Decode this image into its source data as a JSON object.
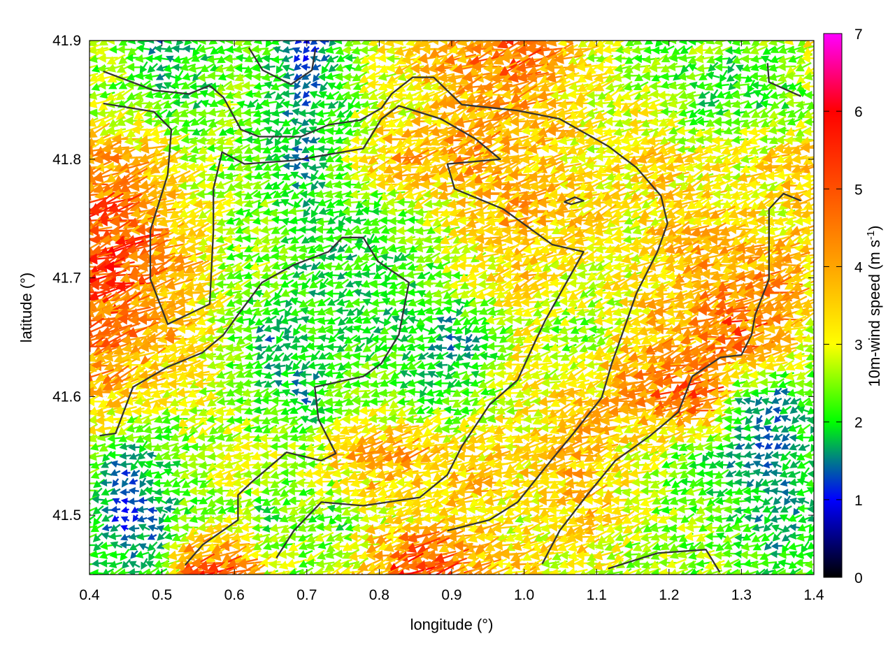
{
  "chart_data": {
    "type": "vector-field",
    "xlabel": "longitude (°)",
    "ylabel": "latitude (°)",
    "xlim": [
      0.4,
      1.4
    ],
    "ylim": [
      41.45,
      41.9
    ],
    "xticks": [
      "0.4",
      "0.5",
      "0.6",
      "0.7",
      "0.8",
      "0.9",
      "1.0",
      "1.1",
      "1.2",
      "1.3",
      "1.4"
    ],
    "yticks": [
      "41.5",
      "41.6",
      "41.7",
      "41.8",
      "41.9"
    ],
    "grid": true,
    "colorbar": {
      "label": "10m-wind speed (m s",
      "label_sup": "-1",
      "label_end": ")",
      "range": [
        0,
        7
      ],
      "ticks": [
        "0",
        "1",
        "2",
        "3",
        "4",
        "5",
        "6",
        "7"
      ],
      "stops": [
        {
          "v": 0,
          "c": "#000000"
        },
        {
          "v": 1,
          "c": "#0000ff"
        },
        {
          "v": 1.5,
          "c": "#007a8a"
        },
        {
          "v": 2,
          "c": "#00ff00"
        },
        {
          "v": 3,
          "c": "#ffff00"
        },
        {
          "v": 4,
          "c": "#ffa500"
        },
        {
          "v": 5,
          "c": "#ff5000"
        },
        {
          "v": 6,
          "c": "#ff0000"
        },
        {
          "v": 7,
          "c": "#ff00ff"
        }
      ]
    },
    "wind_grid": {
      "lon": [
        0.4,
        0.45,
        0.5,
        0.55,
        0.6,
        0.65,
        0.7,
        0.75,
        0.8,
        0.85,
        0.9,
        0.95,
        1.0,
        1.05,
        1.1,
        1.15,
        1.2,
        1.25,
        1.3,
        1.35,
        1.4
      ],
      "lat": [
        41.9,
        41.85,
        41.8,
        41.75,
        41.7,
        41.65,
        41.6,
        41.55,
        41.5,
        41.45
      ],
      "mean_direction_deg": 197,
      "speed": [
        [
          2.5,
          2.5,
          1.5,
          2,
          2.5,
          2,
          1,
          2,
          3,
          3.5,
          4,
          4.5,
          5,
          4,
          3,
          2.5,
          2,
          2.5,
          2,
          2.5,
          3
        ],
        [
          2.5,
          2.5,
          2,
          2,
          2.5,
          2,
          1.5,
          2,
          3,
          3,
          3.5,
          4,
          4,
          3.5,
          3,
          3,
          2.5,
          2,
          2,
          2,
          2.5
        ],
        [
          4,
          4,
          3.5,
          2.5,
          2.5,
          2,
          1.5,
          2.5,
          3.5,
          4,
          4,
          4,
          3.5,
          3.5,
          3,
          3.5,
          3.5,
          3,
          3,
          3.5,
          3.5
        ],
        [
          5,
          5,
          4,
          3.5,
          2.5,
          2.5,
          2,
          2,
          2,
          2.5,
          3,
          3.5,
          4,
          3.5,
          3.5,
          3,
          3.5,
          3.5,
          3.5,
          3,
          3.5
        ],
        [
          5,
          5,
          4.5,
          3.5,
          2.5,
          2.5,
          2,
          2,
          2,
          2,
          2.5,
          3,
          3.5,
          3,
          3,
          3,
          3.5,
          4,
          4,
          4.5,
          3.5
        ],
        [
          4.5,
          4.5,
          4,
          3.5,
          2.5,
          1.5,
          2,
          2,
          2,
          2,
          1.5,
          2,
          3,
          2.5,
          2.5,
          3.5,
          4,
          4,
          5,
          4,
          3
        ],
        [
          4,
          3.5,
          3,
          3,
          2.5,
          2,
          1.5,
          2.5,
          2.5,
          2,
          2,
          2.5,
          3,
          3.5,
          3.5,
          4,
          4.5,
          5,
          2,
          1.5,
          2
        ],
        [
          2.5,
          1.5,
          2,
          2.5,
          3,
          3,
          2.5,
          3.5,
          4,
          4,
          3.5,
          3.5,
          3.5,
          3.5,
          4,
          3,
          2.5,
          2,
          1.5,
          1.5,
          2
        ],
        [
          2,
          1,
          1.5,
          2.5,
          2.5,
          2,
          2.5,
          2,
          3,
          3,
          3.5,
          3.5,
          3,
          3.5,
          3.5,
          3,
          2.5,
          2.5,
          2,
          1.5,
          2
        ],
        [
          2,
          2,
          2,
          5,
          5,
          3,
          2.5,
          3,
          4,
          6,
          5,
          4,
          3.5,
          3,
          3,
          2.5,
          2.5,
          2.5,
          2.5,
          2,
          2.5
        ]
      ]
    },
    "contours": [
      [
        [
          0.419,
          41.874
        ],
        [
          0.489,
          41.858
        ],
        [
          0.537,
          41.855
        ],
        [
          0.566,
          41.862
        ],
        [
          0.585,
          41.852
        ],
        [
          0.609,
          41.825
        ],
        [
          0.634,
          41.819
        ],
        [
          0.692,
          41.819
        ],
        [
          0.73,
          41.829
        ],
        [
          0.774,
          41.833
        ],
        [
          0.803,
          41.843
        ],
        [
          0.817,
          41.855
        ],
        [
          0.846,
          41.869
        ],
        [
          0.875,
          41.869
        ],
        [
          0.914,
          41.846
        ],
        [
          0.991,
          41.841
        ],
        [
          1.049,
          41.834
        ],
        [
          1.116,
          41.811
        ],
        [
          1.155,
          41.793
        ],
        [
          1.189,
          41.769
        ],
        [
          1.198,
          41.746
        ],
        [
          1.184,
          41.722
        ],
        [
          1.155,
          41.687
        ],
        [
          1.135,
          41.652
        ],
        [
          1.121,
          41.628
        ],
        [
          1.107,
          41.599
        ],
        [
          1.068,
          41.569
        ],
        [
          1.029,
          41.54
        ],
        [
          0.991,
          41.511
        ],
        [
          0.952,
          41.496
        ],
        [
          0.894,
          41.487
        ]
      ],
      [
        [
          0.419,
          41.847
        ],
        [
          0.489,
          41.84
        ],
        [
          0.513,
          41.825
        ],
        [
          0.508,
          41.787
        ],
        [
          0.484,
          41.74
        ],
        [
          0.484,
          41.699
        ],
        [
          0.508,
          41.661
        ],
        [
          0.566,
          41.678
        ],
        [
          0.571,
          41.74
        ],
        [
          0.571,
          41.775
        ],
        [
          0.583,
          41.806
        ],
        [
          0.614,
          41.796
        ],
        [
          0.682,
          41.799
        ],
        [
          0.778,
          41.809
        ],
        [
          0.803,
          41.834
        ],
        [
          0.827,
          41.845
        ],
        [
          0.885,
          41.834
        ],
        [
          0.933,
          41.817
        ],
        [
          0.967,
          41.8
        ],
        [
          0.894,
          41.796
        ],
        [
          0.904,
          41.775
        ],
        [
          0.971,
          41.758
        ],
        [
          1.039,
          41.728
        ],
        [
          1.082,
          41.722
        ],
        [
          1.029,
          41.664
        ],
        [
          1.015,
          41.646
        ],
        [
          0.991,
          41.614
        ],
        [
          0.952,
          41.593
        ],
        [
          0.914,
          41.558
        ],
        [
          0.894,
          41.534
        ],
        [
          0.856,
          41.515
        ],
        [
          0.778,
          41.508
        ],
        [
          0.72,
          41.511
        ],
        [
          0.682,
          41.487
        ],
        [
          0.658,
          41.464
        ]
      ],
      [
        [
          0.414,
          41.567
        ],
        [
          0.436,
          41.569
        ],
        [
          0.46,
          41.608
        ],
        [
          0.508,
          41.625
        ],
        [
          0.556,
          41.637
        ],
        [
          0.585,
          41.652
        ],
        [
          0.605,
          41.669
        ],
        [
          0.638,
          41.696
        ],
        [
          0.682,
          41.711
        ],
        [
          0.73,
          41.722
        ],
        [
          0.749,
          41.734
        ],
        [
          0.778,
          41.734
        ],
        [
          0.798,
          41.714
        ],
        [
          0.841,
          41.696
        ],
        [
          0.827,
          41.652
        ],
        [
          0.803,
          41.628
        ],
        [
          0.778,
          41.617
        ],
        [
          0.711,
          41.608
        ],
        [
          0.716,
          41.581
        ],
        [
          0.74,
          41.552
        ],
        [
          0.72,
          41.546
        ],
        [
          0.672,
          41.553
        ],
        [
          0.624,
          41.528
        ],
        [
          0.605,
          41.517
        ],
        [
          0.605,
          41.496
        ],
        [
          0.556,
          41.475
        ],
        [
          0.532,
          41.458
        ]
      ],
      [
        [
          1.025,
          41.459
        ],
        [
          1.049,
          41.487
        ],
        [
          1.087,
          41.517
        ],
        [
          1.126,
          41.546
        ],
        [
          1.174,
          41.567
        ],
        [
          1.213,
          41.587
        ],
        [
          1.232,
          41.617
        ],
        [
          1.271,
          41.633
        ],
        [
          1.3,
          41.635
        ],
        [
          1.314,
          41.652
        ],
        [
          1.319,
          41.669
        ],
        [
          1.338,
          41.699
        ],
        [
          1.338,
          41.728
        ],
        [
          1.338,
          41.758
        ],
        [
          1.358,
          41.771
        ],
        [
          1.382,
          41.765
        ]
      ],
      [
        [
          1.116,
          41.455
        ],
        [
          1.184,
          41.468
        ],
        [
          1.251,
          41.471
        ],
        [
          1.27,
          41.452
        ]
      ],
      [
        [
          0.62,
          41.894
        ],
        [
          0.639,
          41.875
        ],
        [
          0.678,
          41.863
        ],
        [
          0.707,
          41.875
        ],
        [
          0.712,
          41.893
        ]
      ],
      [
        [
          1.336,
          41.881
        ],
        [
          1.338,
          41.865
        ],
        [
          1.382,
          41.853
        ]
      ],
      [
        [
          1.055,
          41.764
        ],
        [
          1.07,
          41.768
        ],
        [
          1.082,
          41.765
        ],
        [
          1.065,
          41.762
        ],
        [
          1.055,
          41.764
        ]
      ]
    ]
  }
}
